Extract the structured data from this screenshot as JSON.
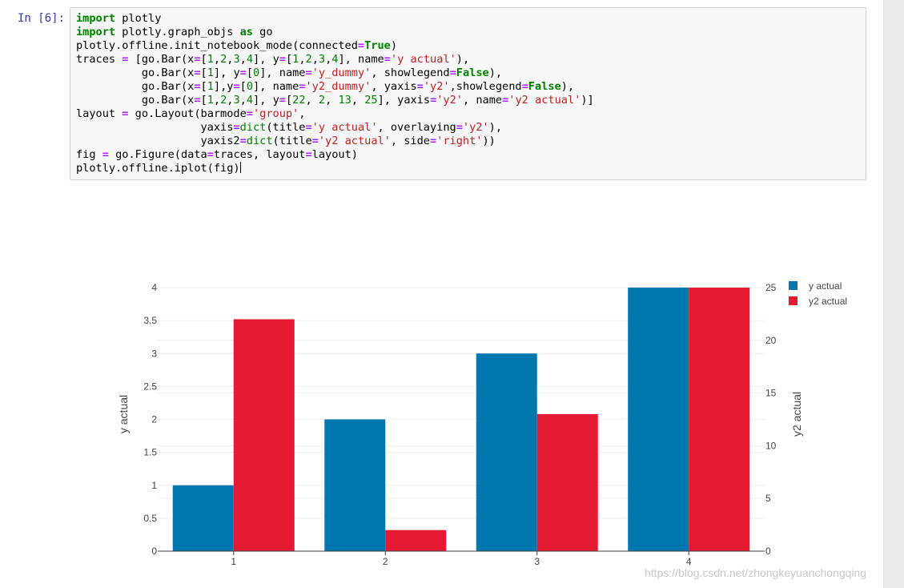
{
  "cell": {
    "prompt": "In [6]:",
    "code_lines": [
      "import plotly",
      "import plotly.graph_objs as go",
      "plotly.offline.init_notebook_mode(connected=True)",
      "traces = [go.Bar(x=[1,2,3,4], y=[1,2,3,4], name='y actual'),",
      "          go.Bar(x=[1], y=[0], name='y_dummy', showlegend=False),",
      "          go.Bar(x=[1],y=[0], name='y2_dummy', yaxis='y2',showlegend=False),",
      "          go.Bar(x=[1,2,3,4], y=[22, 2, 13, 25], yaxis='y2', name='y2 actual')]",
      "layout = go.Layout(barmode='group',",
      "                   yaxis=dict(title='y actual', overlaying='y2'),",
      "                   yaxis2=dict(title='y2 actual', side='right'))",
      "fig = go.Figure(data=traces, layout=layout)",
      "plotly.offline.iplot(fig)"
    ]
  },
  "chart_data": {
    "type": "bar",
    "categories": [
      1,
      2,
      3,
      4
    ],
    "series": [
      {
        "name": "y actual",
        "axis": "left",
        "color": "#0077ae",
        "values": [
          1,
          2,
          3,
          4
        ]
      },
      {
        "name": "y2 actual",
        "axis": "right",
        "color": "#e31a32",
        "values": [
          22,
          2,
          13,
          25
        ]
      }
    ],
    "ylabel": "y actual",
    "y2label": "y2 actual",
    "ylim": [
      0,
      4
    ],
    "y2lim": [
      0,
      25
    ],
    "yticks": [
      0,
      0.5,
      1,
      1.5,
      2,
      2.5,
      3,
      3.5,
      4
    ],
    "yticks_labels": [
      "0",
      "0.5",
      "1",
      "1.5",
      "2",
      "2.5",
      "3",
      "3.5",
      "4"
    ],
    "y2ticks": [
      0,
      5,
      10,
      15,
      20,
      25
    ],
    "y2ticks_labels": [
      "0",
      "5",
      "10",
      "15",
      "20",
      "25"
    ],
    "xtick_labels": [
      "1",
      "2",
      "3",
      "4"
    ],
    "grid": true,
    "legend_position": "top-right"
  },
  "watermark": "https://blog.csdn.net/zhongkeyuanchongqing"
}
